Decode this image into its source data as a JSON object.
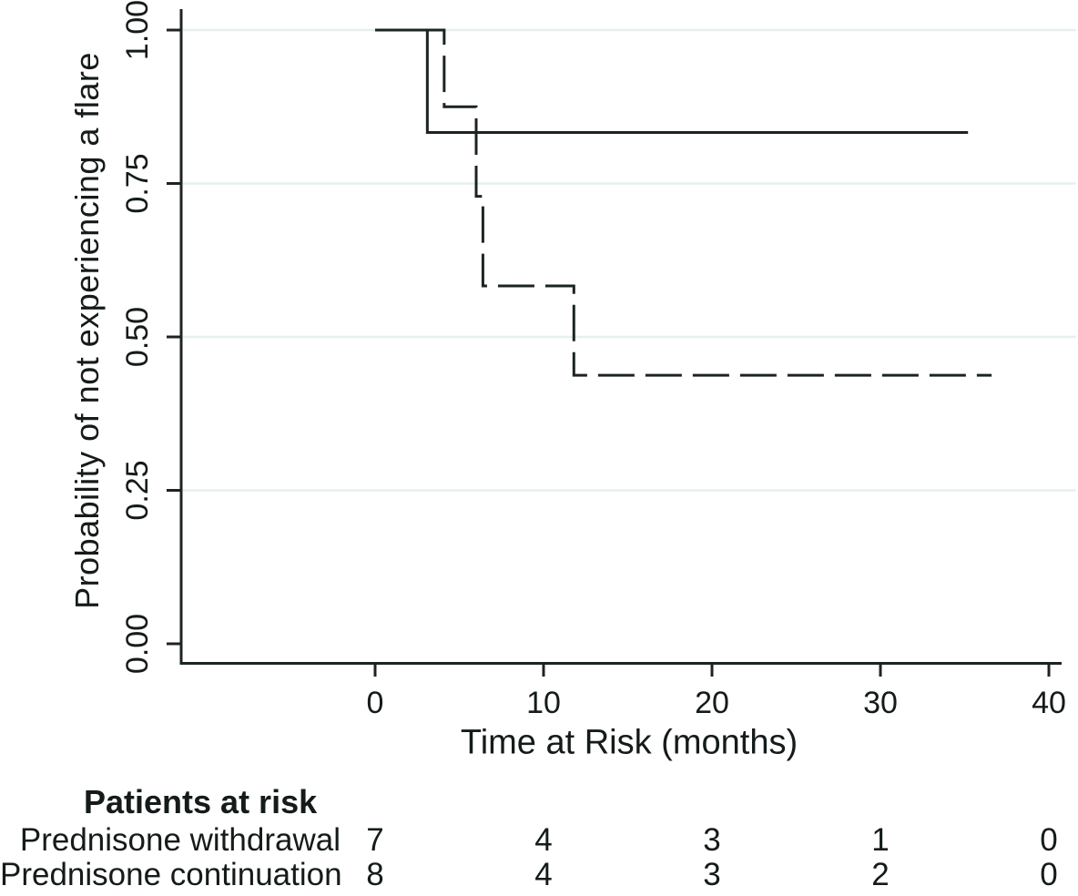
{
  "chart_data": {
    "type": "line",
    "chart_style": "kaplan-meier-step",
    "title": "",
    "xlabel": "Time at Risk (months)",
    "ylabel": "Probability of not experiencing a flare",
    "xlim": [
      -11.5,
      40.8
    ],
    "ylim": [
      -0.03,
      1.03
    ],
    "x_ticks": [
      0,
      10,
      20,
      30,
      40
    ],
    "y_ticks": [
      {
        "label": "0.00",
        "value": 0.0
      },
      {
        "label": "0.25",
        "value": 0.25
      },
      {
        "label": "0.50",
        "value": 0.5
      },
      {
        "label": "0.75",
        "value": 0.75
      },
      {
        "label": "1.00",
        "value": 1.0
      }
    ],
    "grid": true,
    "gridline_values": [
      0.25,
      0.5,
      0.75,
      1.0
    ],
    "legend_position": "none",
    "series": [
      {
        "name": "solid",
        "line_style": "solid",
        "x": [
          0,
          3.1,
          3.1,
          35.2
        ],
        "y": [
          1.0,
          1.0,
          0.833,
          0.833
        ]
      },
      {
        "name": "dashed",
        "line_style": "dashed",
        "x": [
          0,
          4.1,
          4.1,
          6.0,
          6.0,
          6.4,
          6.4,
          11.8,
          11.8,
          36.6
        ],
        "y": [
          1.0,
          1.0,
          0.875,
          0.875,
          0.729,
          0.729,
          0.583,
          0.583,
          0.4375,
          0.4375
        ]
      }
    ],
    "at_risk_table": {
      "header": "Patients at risk",
      "time_points": [
        0,
        10,
        20,
        30,
        40
      ],
      "rows": [
        {
          "label": "Prednisone withdrawal",
          "counts": [
            "7",
            "4",
            "3",
            "1",
            "0"
          ]
        },
        {
          "label": "Prednisone continuation",
          "counts": [
            "8",
            "4",
            "3",
            "2",
            "0"
          ]
        }
      ]
    },
    "colors": {
      "ink": "#1c2423",
      "gridline": "#e7f0ec",
      "background": "#ffffff"
    }
  }
}
